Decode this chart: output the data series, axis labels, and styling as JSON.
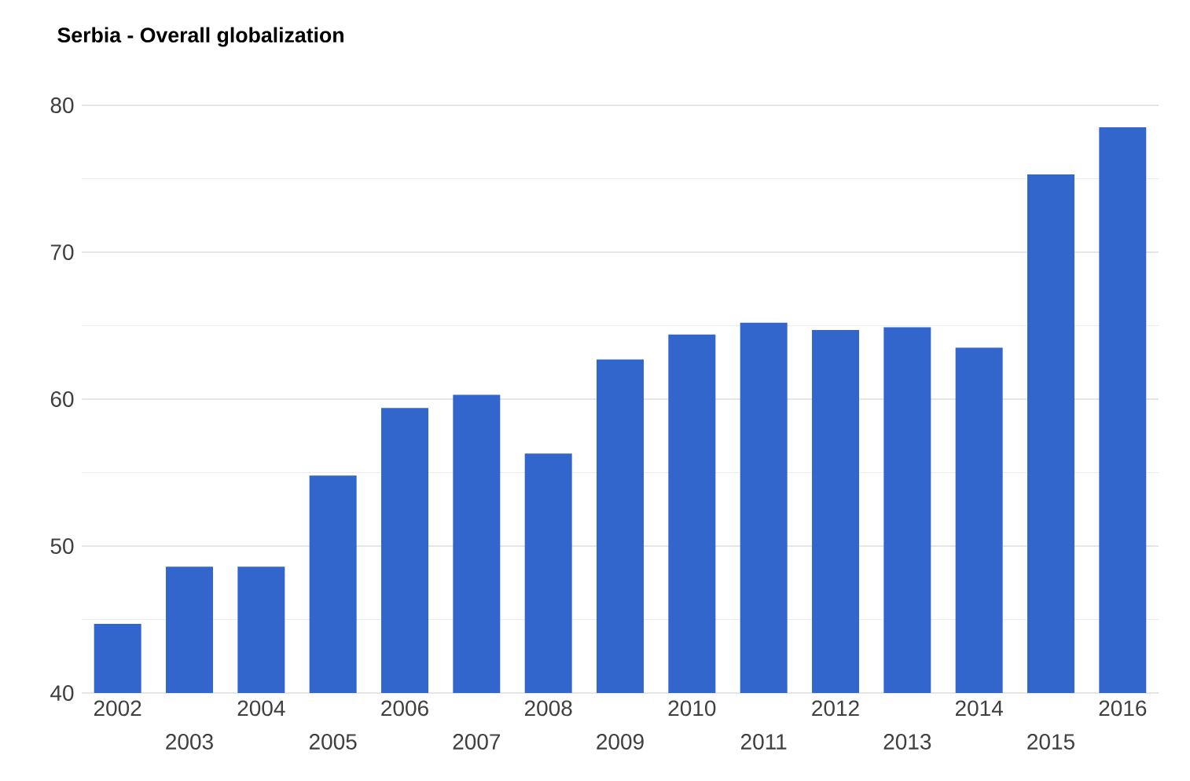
{
  "chart_data": {
    "type": "bar",
    "title": "Serbia - Overall globalization",
    "categories": [
      "2002",
      "2003",
      "2004",
      "2005",
      "2006",
      "2007",
      "2008",
      "2009",
      "2010",
      "2011",
      "2012",
      "2013",
      "2014",
      "2015",
      "2016"
    ],
    "values": [
      44.7,
      48.6,
      48.6,
      54.8,
      59.4,
      60.3,
      56.3,
      62.7,
      64.4,
      65.2,
      64.7,
      64.9,
      63.5,
      75.3,
      78.5
    ],
    "color": "#3366cc",
    "ylim": [
      40,
      80
    ],
    "yticks": [
      40,
      50,
      60,
      70,
      80
    ],
    "grid": "y"
  }
}
